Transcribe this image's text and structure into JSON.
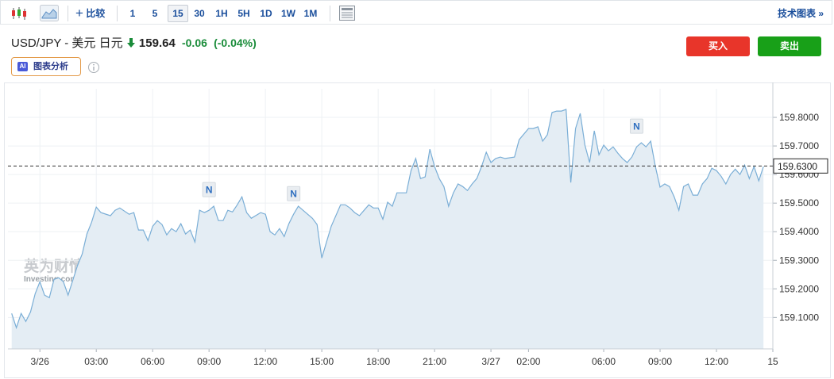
{
  "toolbar": {
    "compare": "比较",
    "intervals": [
      "1",
      "5",
      "15",
      "30",
      "1H",
      "5H",
      "1D",
      "1W",
      "1M"
    ],
    "active_interval": 2,
    "technical": "技术图表 »"
  },
  "header": {
    "symbol": "USD/JPY - 美元 日元",
    "price": 159.64,
    "change": -0.06,
    "change_pct": "(-0.04%)",
    "buy": "买入",
    "sell": "卖出",
    "ai_badge": "AI",
    "ai_label": "图表分析"
  },
  "watermark": {
    "brand": "英为财情",
    "site": "Investing.com"
  },
  "chart_data": {
    "type": "area",
    "color": "#7aaed6",
    "fill": "#e4edf4",
    "grid": true,
    "x": [
      -1.5,
      -1.25,
      -1,
      -0.75,
      -0.5,
      -0.25,
      0,
      0.25,
      0.5,
      0.75,
      1,
      1.25,
      1.5,
      2,
      2.25,
      2.5,
      2.75,
      3,
      3.25,
      3.75,
      4,
      4.25,
      4.75,
      5,
      5.25,
      5.5,
      5.75,
      6,
      6.25,
      6.5,
      6.75,
      7,
      7.25,
      7.5,
      7.75,
      8,
      8.25,
      8.5,
      8.75,
      9,
      9.25,
      9.5,
      9.75,
      10,
      10.25,
      10.5,
      10.75,
      11,
      11.25,
      11.75,
      12,
      12.25,
      12.5,
      12.75,
      13,
      13.25,
      13.5,
      13.75,
      14,
      14.5,
      14.75,
      15,
      15.25,
      15.5,
      16,
      16.25,
      16.5,
      16.75,
      17,
      17.25,
      17.5,
      17.75,
      18,
      18.25,
      18.5,
      18.75,
      19,
      19.5,
      19.75,
      20,
      20.25,
      20.5,
      20.75,
      21,
      21.25,
      21.5,
      21.75,
      22,
      22.25,
      22.5,
      22.75,
      23,
      23.25,
      23.5,
      23.75,
      24,
      24.25,
      24.5,
      24.75,
      25.25,
      25.5,
      26,
      26.25,
      26.5,
      26.75,
      27,
      27.25,
      27.5,
      27.75,
      28,
      28.25,
      28.5,
      28.75,
      29,
      29.25,
      29.5,
      29.75,
      30,
      30.25,
      30.5,
      30.75,
      31,
      31.25,
      31.5,
      31.75,
      32,
      32.25,
      32.5,
      32.75,
      33,
      33.25,
      33.5,
      33.75,
      34,
      34.25,
      34.5,
      34.75,
      35,
      35.25,
      35.5,
      35.75,
      36,
      36.25,
      36.5,
      36.75,
      37,
      37.25,
      37.5,
      37.75,
      38,
      38.25,
      38.5
    ],
    "values": [
      159.114,
      159.064,
      159.114,
      159.086,
      159.119,
      159.183,
      159.225,
      159.178,
      159.169,
      159.233,
      159.239,
      159.225,
      159.178,
      159.281,
      159.322,
      159.392,
      159.433,
      159.486,
      159.467,
      159.456,
      159.475,
      159.483,
      159.461,
      159.467,
      159.406,
      159.406,
      159.369,
      159.419,
      159.439,
      159.425,
      159.389,
      159.411,
      159.4,
      159.428,
      159.392,
      159.406,
      159.364,
      159.475,
      159.467,
      159.475,
      159.489,
      159.439,
      159.439,
      159.475,
      159.469,
      159.494,
      159.522,
      159.467,
      159.447,
      159.467,
      159.461,
      159.4,
      159.389,
      159.411,
      159.383,
      159.428,
      159.461,
      159.489,
      159.475,
      159.447,
      159.425,
      159.308,
      159.364,
      159.419,
      159.494,
      159.494,
      159.483,
      159.467,
      159.456,
      159.475,
      159.494,
      159.483,
      159.483,
      159.444,
      159.503,
      159.489,
      159.536,
      159.536,
      159.614,
      159.656,
      159.586,
      159.592,
      159.689,
      159.628,
      159.586,
      159.558,
      159.489,
      159.536,
      159.567,
      159.558,
      159.544,
      159.567,
      159.586,
      159.628,
      159.678,
      159.642,
      159.656,
      159.661,
      159.656,
      159.661,
      159.722,
      159.761,
      159.761,
      159.767,
      159.717,
      159.739,
      159.817,
      159.822,
      159.822,
      159.828,
      159.572,
      159.761,
      159.814,
      159.703,
      159.642,
      159.753,
      159.669,
      159.703,
      159.683,
      159.697,
      159.675,
      159.656,
      159.642,
      159.661,
      159.697,
      159.711,
      159.697,
      159.717,
      159.628,
      159.556,
      159.567,
      159.558,
      159.522,
      159.475,
      159.558,
      159.567,
      159.528,
      159.528,
      159.567,
      159.586,
      159.622,
      159.614,
      159.594,
      159.567,
      159.6,
      159.619,
      159.6,
      159.633,
      159.586,
      159.628,
      159.578,
      159.628
    ],
    "xlim": [
      -1.7,
      39
    ],
    "ylim": [
      158.99,
      159.9
    ],
    "xticks": [
      {
        "value": 0,
        "label": "3/26"
      },
      {
        "value": 3,
        "label": "03:00"
      },
      {
        "value": 6,
        "label": "06:00"
      },
      {
        "value": 9,
        "label": "09:00"
      },
      {
        "value": 12,
        "label": "12:00"
      },
      {
        "value": 15,
        "label": "15:00"
      },
      {
        "value": 18,
        "label": "18:00"
      },
      {
        "value": 21,
        "label": "21:00"
      },
      {
        "value": 24,
        "label": "3/27"
      },
      {
        "value": 26,
        "label": "02:00"
      },
      {
        "value": 30,
        "label": "06:00"
      },
      {
        "value": 33,
        "label": "09:00"
      },
      {
        "value": 36,
        "label": "12:00"
      },
      {
        "value": 39,
        "label": "15"
      }
    ],
    "yticks": [
      {
        "value": 159.1,
        "label": "159.1000"
      },
      {
        "value": 159.2,
        "label": "159.2000"
      },
      {
        "value": 159.3,
        "label": "159.3000"
      },
      {
        "value": 159.4,
        "label": "159.4000"
      },
      {
        "value": 159.5,
        "label": "159.5000"
      },
      {
        "value": 159.6,
        "label": "159.6000"
      },
      {
        "value": 159.7,
        "label": "159.7000"
      },
      {
        "value": 159.8,
        "label": "159.8000"
      }
    ],
    "last_price": {
      "value": 159.63,
      "label": "159.6300"
    },
    "news_markers": [
      {
        "x": 9,
        "label": "N"
      },
      {
        "x": 13.5,
        "label": "N"
      },
      {
        "x": 31.75,
        "label": "N"
      }
    ]
  }
}
